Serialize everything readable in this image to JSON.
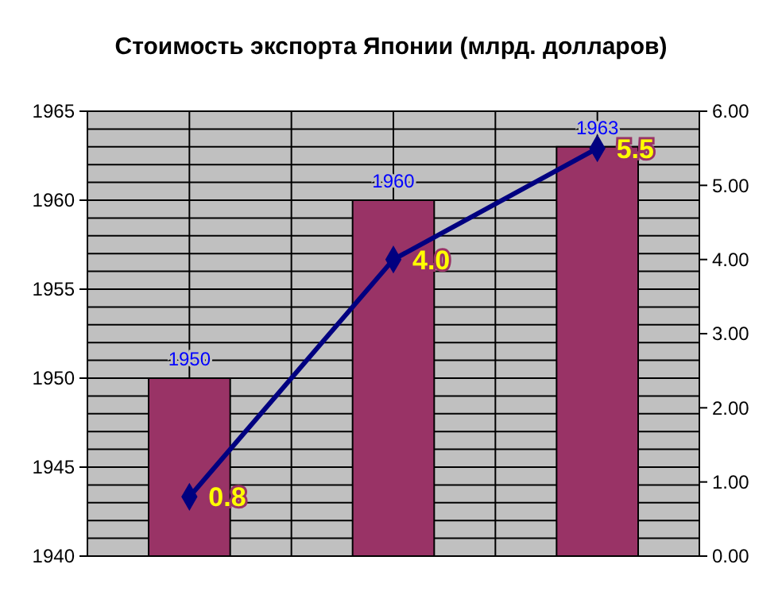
{
  "chart_data": {
    "type": "bar",
    "title": "Стоимость экспорта Японии (млрд. долларов)",
    "categories": [
      null,
      null,
      null
    ],
    "series": [
      {
        "color": "#993366",
        "values": [
          1950,
          1960,
          1963
        ],
        "value_labels": [
          "1950",
          "1960",
          "1963"
        ]
      },
      {
        "type": "line",
        "axis": "y2",
        "color": "#000080",
        "values": [
          0.8,
          4.0,
          5.5
        ],
        "value_labels": [
          "0.8",
          "4.0",
          "5.5"
        ],
        "marker": "diamond"
      }
    ],
    "ylim": [
      1940,
      1965
    ],
    "yticks": [
      1940,
      {
        "value": 1941,
        "label": null
      },
      {
        "value": 1942,
        "label": null
      },
      {
        "value": 1943,
        "label": null
      },
      {
        "value": 1944,
        "label": null
      },
      1945,
      {
        "value": 1946,
        "label": null
      },
      {
        "value": 1947,
        "label": null
      },
      {
        "value": 1948,
        "label": null
      },
      {
        "value": 1949,
        "label": null
      },
      1950,
      {
        "value": 1951,
        "label": null
      },
      {
        "value": 1952,
        "label": null
      },
      {
        "value": 1953,
        "label": null
      },
      {
        "value": 1954,
        "label": null
      },
      1955,
      {
        "value": 1956,
        "label": null
      },
      {
        "value": 1957,
        "label": null
      },
      {
        "value": 1958,
        "label": null
      },
      {
        "value": 1959,
        "label": null
      },
      1960,
      {
        "value": 1961,
        "label": null
      },
      {
        "value": 1962,
        "label": null
      },
      {
        "value": 1963,
        "label": null
      },
      {
        "value": 1964,
        "label": null
      },
      1965
    ],
    "y2lim": [
      0,
      6
    ],
    "y2ticks": [
      {
        "value": 0,
        "label": "0.00"
      },
      {
        "value": 1,
        "label": "1.00"
      },
      {
        "value": 2,
        "label": "2.00"
      },
      {
        "value": 3,
        "label": "3.00"
      },
      {
        "value": 4,
        "label": "4.00"
      },
      {
        "value": 5,
        "label": "5.00"
      },
      {
        "value": 6,
        "label": "6.00"
      }
    ],
    "grid": true
  }
}
